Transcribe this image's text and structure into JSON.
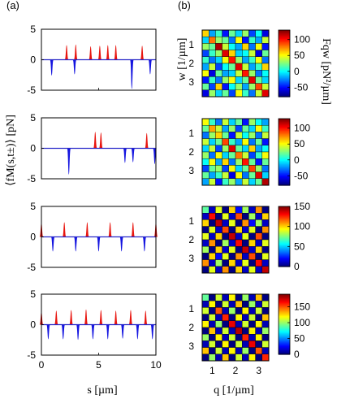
{
  "labels": {
    "panel_a": "(a)",
    "panel_b": "(b)",
    "left_ylabel": "⟨fM(s,t±)⟩ [pN]",
    "left_xlabel": "s [µm]",
    "right_ylabel": "w [1/µm]",
    "right_xlabel": "q [1/µm]",
    "colorbar_label": "Fqw [pN²/µm]"
  },
  "chart_data": [
    {
      "type": "line",
      "panel": "a-1",
      "xlim": [
        0,
        10
      ],
      "ylim": [
        -5,
        5
      ],
      "yticks": [
        "5",
        "0",
        "-5"
      ],
      "xticks": [
        "0",
        "5",
        "10"
      ],
      "positive_peaks": [
        {
          "x": 2.2,
          "y": 2.4
        },
        {
          "x": 3.0,
          "y": 2.5
        },
        {
          "x": 4.3,
          "y": 2.2
        },
        {
          "x": 5.1,
          "y": 2.3
        },
        {
          "x": 5.8,
          "y": 2.4
        },
        {
          "x": 6.5,
          "y": 2.4
        },
        {
          "x": 8.8,
          "y": 2.3
        }
      ],
      "negative_peaks": [
        {
          "x": 0.9,
          "y": -2.6
        },
        {
          "x": 2.9,
          "y": -2.4
        },
        {
          "x": 7.9,
          "y": -4.8
        },
        {
          "x": 9.5,
          "y": -2.4
        }
      ]
    },
    {
      "type": "line",
      "panel": "a-2",
      "xlim": [
        0,
        10
      ],
      "ylim": [
        -5,
        5
      ],
      "yticks": [
        "5",
        "0",
        "-5"
      ],
      "positive_peaks": [
        {
          "x": 4.7,
          "y": 2.7
        },
        {
          "x": 5.2,
          "y": 2.6
        },
        {
          "x": 9.2,
          "y": 2.5
        }
      ],
      "negative_peaks": [
        {
          "x": 2.4,
          "y": -4.3
        },
        {
          "x": 7.3,
          "y": -2.4
        },
        {
          "x": 8.0,
          "y": -2.3
        },
        {
          "x": 9.9,
          "y": -2.6
        }
      ]
    },
    {
      "type": "line",
      "panel": "a-3",
      "xlim": [
        0,
        10
      ],
      "ylim": [
        -5,
        5
      ],
      "yticks": [
        "5",
        "0",
        "-5"
      ],
      "positive_peaks": [
        {
          "x": 0.0,
          "y": 2.4
        },
        {
          "x": 2.0,
          "y": 2.4
        },
        {
          "x": 4.0,
          "y": 2.4
        },
        {
          "x": 6.0,
          "y": 2.4
        },
        {
          "x": 8.0,
          "y": 2.4
        },
        {
          "x": 10.0,
          "y": 2.4
        }
      ],
      "negative_peaks": [
        {
          "x": 1.0,
          "y": -2.4
        },
        {
          "x": 3.0,
          "y": -2.4
        },
        {
          "x": 5.0,
          "y": -2.4
        },
        {
          "x": 7.0,
          "y": -2.4
        },
        {
          "x": 9.0,
          "y": -2.4
        }
      ]
    },
    {
      "type": "line",
      "panel": "a-4",
      "xlim": [
        0,
        10
      ],
      "ylim": [
        -5,
        5
      ],
      "yticks": [
        "5",
        "0",
        "-5"
      ],
      "xticks": [
        "0",
        "5",
        "10"
      ],
      "positive_peaks": [
        {
          "x": 0.0,
          "y": 2.2
        },
        {
          "x": 1.3,
          "y": 2.3
        },
        {
          "x": 2.6,
          "y": 2.4
        },
        {
          "x": 3.9,
          "y": 2.5
        },
        {
          "x": 5.2,
          "y": 2.4
        },
        {
          "x": 6.5,
          "y": 2.3
        },
        {
          "x": 7.8,
          "y": 2.4
        },
        {
          "x": 9.1,
          "y": 2.3
        }
      ],
      "negative_peaks": [
        {
          "x": 0.6,
          "y": -2.4
        },
        {
          "x": 1.9,
          "y": -2.4
        },
        {
          "x": 3.2,
          "y": -2.5
        },
        {
          "x": 4.5,
          "y": -2.4
        },
        {
          "x": 5.8,
          "y": -2.4
        },
        {
          "x": 7.1,
          "y": -2.3
        },
        {
          "x": 8.4,
          "y": -2.4
        },
        {
          "x": 9.7,
          "y": -2.4
        }
      ]
    },
    {
      "type": "heatmap",
      "panel": "b-1",
      "size": 10,
      "yticks": [
        "1",
        "2",
        "3"
      ],
      "colorbar_ticks": [
        "100",
        "50",
        "0",
        "-50"
      ],
      "clim": [
        -80,
        130
      ],
      "values": [
        [
          60,
          -20,
          10,
          -50,
          20,
          -10,
          30,
          -40,
          0,
          -60
        ],
        [
          -10,
          80,
          30,
          20,
          -30,
          50,
          -50,
          10,
          -20,
          40
        ],
        [
          30,
          20,
          120,
          40,
          0,
          -20,
          60,
          -30,
          50,
          -50
        ],
        [
          -40,
          10,
          30,
          110,
          60,
          -10,
          0,
          40,
          -60,
          20
        ],
        [
          10,
          -30,
          -10,
          50,
          100,
          30,
          -20,
          10,
          50,
          -30
        ],
        [
          -20,
          40,
          -40,
          0,
          20,
          110,
          40,
          -20,
          10,
          60
        ],
        [
          50,
          -60,
          20,
          -20,
          -10,
          40,
          100,
          30,
          -30,
          0
        ],
        [
          -50,
          10,
          -30,
          30,
          50,
          -10,
          20,
          110,
          20,
          -10
        ],
        [
          20,
          -40,
          60,
          -50,
          0,
          30,
          -20,
          30,
          90,
          40
        ],
        [
          -60,
          30,
          -10,
          20,
          -40,
          50,
          10,
          -30,
          40,
          110
        ]
      ]
    },
    {
      "type": "heatmap",
      "panel": "b-2",
      "size": 10,
      "yticks": [
        "1",
        "2",
        "3"
      ],
      "colorbar_ticks": [
        "100",
        "50",
        "0",
        "-50"
      ],
      "clim": [
        -80,
        130
      ],
      "values": [
        [
          50,
          10,
          -30,
          40,
          -10,
          20,
          -50,
          30,
          0,
          -20
        ],
        [
          20,
          70,
          40,
          -20,
          30,
          -40,
          20,
          -10,
          50,
          10
        ],
        [
          -30,
          30,
          60,
          20,
          -50,
          40,
          0,
          30,
          -30,
          40
        ],
        [
          40,
          -10,
          20,
          90,
          10,
          -20,
          50,
          -30,
          20,
          -50
        ],
        [
          -10,
          40,
          -40,
          30,
          110,
          20,
          -10,
          60,
          -20,
          0
        ],
        [
          30,
          -30,
          50,
          -10,
          20,
          80,
          40,
          -40,
          10,
          50
        ],
        [
          0,
          50,
          -20,
          60,
          -30,
          30,
          100,
          20,
          -50,
          20
        ],
        [
          -40,
          20,
          30,
          -40,
          50,
          -10,
          20,
          90,
          30,
          -30
        ],
        [
          20,
          -20,
          10,
          40,
          -60,
          50,
          -30,
          20,
          110,
          -10
        ],
        [
          -20,
          40,
          -50,
          10,
          30,
          -20,
          40,
          -10,
          20,
          120
        ]
      ]
    },
    {
      "type": "heatmap",
      "panel": "b-3",
      "size": 10,
      "yticks": [
        "1",
        "2",
        "3"
      ],
      "colorbar_ticks": [
        "150",
        "100",
        "50",
        "0"
      ],
      "clim": [
        0,
        150
      ],
      "values": [
        [
          70,
          10,
          90,
          0,
          100,
          20,
          80,
          10,
          110,
          0
        ],
        [
          10,
          130,
          0,
          90,
          10,
          120,
          0,
          80,
          10,
          100
        ],
        [
          100,
          0,
          140,
          10,
          90,
          0,
          110,
          20,
          80,
          10
        ],
        [
          0,
          90,
          10,
          120,
          0,
          100,
          10,
          90,
          0,
          110
        ],
        [
          90,
          10,
          100,
          0,
          140,
          10,
          90,
          0,
          120,
          0
        ],
        [
          10,
          110,
          0,
          80,
          10,
          130,
          0,
          100,
          10,
          90
        ],
        [
          80,
          0,
          100,
          10,
          90,
          0,
          140,
          10,
          100,
          0
        ],
        [
          0,
          100,
          20,
          90,
          0,
          110,
          10,
          120,
          0,
          90
        ],
        [
          110,
          10,
          80,
          0,
          100,
          10,
          90,
          0,
          130,
          10
        ],
        [
          0,
          90,
          10,
          110,
          0,
          100,
          10,
          90,
          10,
          140
        ]
      ]
    },
    {
      "type": "heatmap",
      "panel": "b-4",
      "size": 10,
      "yticks": [
        "1",
        "2",
        "3"
      ],
      "colorbar_ticks": [
        "150",
        "100",
        "50",
        "0"
      ],
      "clim": [
        0,
        190
      ],
      "values": [
        [
          90,
          0,
          110,
          10,
          120,
          0,
          100,
          10,
          130,
          0
        ],
        [
          10,
          120,
          0,
          110,
          10,
          130,
          0,
          100,
          10,
          110
        ],
        [
          110,
          0,
          150,
          10,
          100,
          0,
          120,
          10,
          110,
          0
        ],
        [
          0,
          110,
          10,
          160,
          0,
          120,
          10,
          110,
          0,
          130
        ],
        [
          120,
          10,
          100,
          0,
          170,
          10,
          110,
          0,
          120,
          10
        ],
        [
          0,
          130,
          10,
          110,
          10,
          180,
          0,
          120,
          10,
          100
        ],
        [
          100,
          0,
          120,
          10,
          110,
          0,
          160,
          10,
          120,
          0
        ],
        [
          10,
          110,
          0,
          120,
          0,
          110,
          10,
          170,
          0,
          110
        ],
        [
          130,
          0,
          110,
          10,
          120,
          10,
          100,
          0,
          150,
          10
        ],
        [
          0,
          100,
          10,
          130,
          0,
          110,
          10,
          120,
          0,
          160
        ]
      ]
    }
  ]
}
